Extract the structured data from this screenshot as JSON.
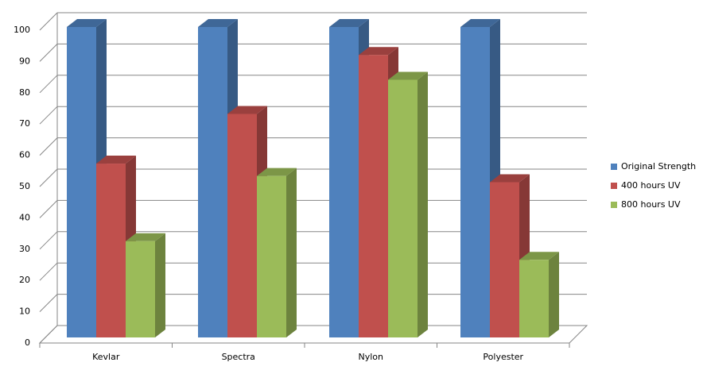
{
  "chart_data": {
    "type": "bar3d",
    "categories": [
      "Kevlar",
      "Spectra",
      "Nylon",
      "Polyester"
    ],
    "series": [
      {
        "name": "Original Strength",
        "color": "#4f81bd",
        "values": [
          100,
          100,
          100,
          100
        ]
      },
      {
        "name": "400 hours UV",
        "color": "#c0504d",
        "values": [
          56,
          72,
          91,
          50
        ]
      },
      {
        "name": "800 hours UV",
        "color": "#9bbb59",
        "values": [
          31,
          52,
          83,
          25
        ]
      }
    ],
    "ylim": [
      0,
      100
    ],
    "yticks": [
      0,
      10,
      20,
      30,
      40,
      50,
      60,
      70,
      80,
      90,
      100
    ],
    "grid": true,
    "legend": "right"
  }
}
